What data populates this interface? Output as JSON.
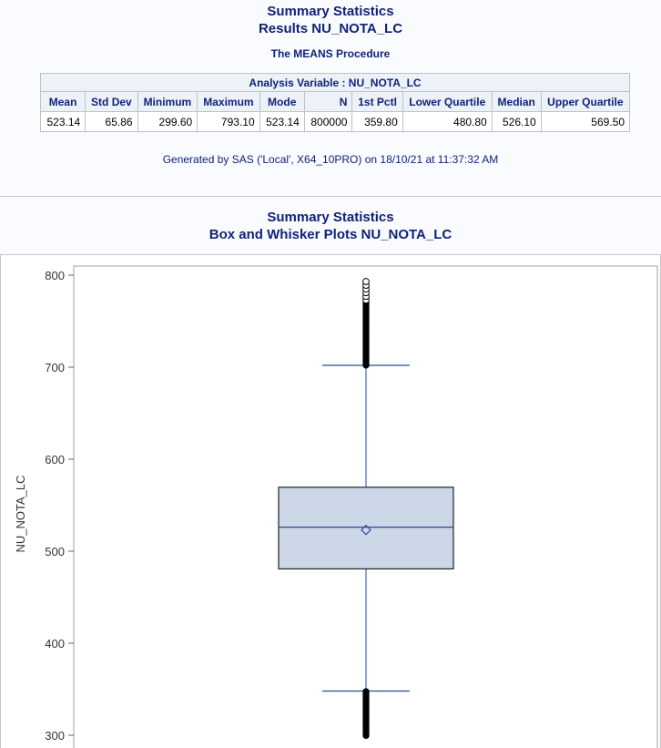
{
  "report": {
    "title1": "Summary Statistics",
    "title2": "Results NU_NOTA_LC",
    "procedure": "The MEANS Procedure",
    "table_caption": "Analysis Variable : NU_NOTA_LC",
    "columns": [
      "Mean",
      "Std Dev",
      "Minimum",
      "Maximum",
      "Mode",
      "N",
      "1st Pctl",
      "Lower Quartile",
      "Median",
      "Upper Quartile"
    ],
    "values": [
      "523.14",
      "65.86",
      "299.60",
      "793.10",
      "523.14",
      "800000",
      "359.80",
      "480.80",
      "526.10",
      "569.50"
    ],
    "footer": "Generated by SAS ('Local', X64_10PRO) on 18/10/21 at 11:37:32 AM"
  },
  "plot": {
    "title1": "Summary Statistics",
    "title2": "Box and Whisker Plots NU_NOTA_LC"
  },
  "colors": {
    "title": "#112277",
    "header_bg": "#edf2f9",
    "box_fill": "#cbd6e6",
    "box_line": "#2a4a9a"
  },
  "chart_data": {
    "type": "box",
    "ylabel": "NU_NOTA_LC",
    "ylim": [
      297,
      812
    ],
    "yticks": [
      300,
      400,
      500,
      600,
      700,
      800
    ],
    "box": {
      "whisker_low": 348,
      "q1": 480.8,
      "median": 526.1,
      "mean": 523.14,
      "q3": 569.5,
      "whisker_high": 702
    },
    "outliers_low_range": [
      299.6,
      348
    ],
    "outliers_high_dense_range": [
      702,
      770
    ],
    "outliers_high_sparse": [
      773,
      777,
      781,
      785,
      789,
      793.1
    ]
  }
}
